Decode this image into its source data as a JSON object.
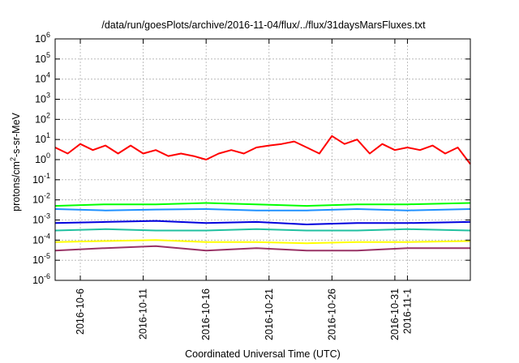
{
  "chart_data": {
    "type": "line",
    "title": "/data/run/goesPlots/archive/2016-11-04/flux/../flux/31daysMarsFluxes.txt",
    "xlabel": "Coordinated Universal Time (UTC)",
    "ylabel_main": "protons/cm",
    "ylabel_sup": "2",
    "ylabel_rest": "-s-sr-MeV",
    "log_y": true,
    "grid": true,
    "xlim": [
      "2016-10-04",
      "2016-11-06"
    ],
    "ylim": [
      1e-06,
      1000000.0
    ],
    "y_ticks": [
      {
        "base": "10",
        "exp": "-6",
        "value": 1e-06
      },
      {
        "base": "10",
        "exp": "-5",
        "value": 1e-05
      },
      {
        "base": "10",
        "exp": "-4",
        "value": 0.0001
      },
      {
        "base": "10",
        "exp": "-3",
        "value": 0.001
      },
      {
        "base": "10",
        "exp": "-2",
        "value": 0.01
      },
      {
        "base": "10",
        "exp": "-1",
        "value": 0.1
      },
      {
        "base": "10",
        "exp": "0",
        "value": 1
      },
      {
        "base": "10",
        "exp": "1",
        "value": 10
      },
      {
        "base": "10",
        "exp": "2",
        "value": 100
      },
      {
        "base": "10",
        "exp": "3",
        "value": 1000
      },
      {
        "base": "10",
        "exp": "4",
        "value": 10000
      },
      {
        "base": "10",
        "exp": "5",
        "value": 100000
      },
      {
        "base": "10",
        "exp": "6",
        "value": 1000000
      }
    ],
    "x_ticks": [
      {
        "label": "2016-10-6",
        "date": "2016-10-06"
      },
      {
        "label": "2016-10-11",
        "date": "2016-10-11"
      },
      {
        "label": "2016-10-16",
        "date": "2016-10-16"
      },
      {
        "label": "2016-10-21",
        "date": "2016-10-21"
      },
      {
        "label": "2016-10-26",
        "date": "2016-10-26"
      },
      {
        "label": "2016-10-31",
        "date": "2016-10-31"
      },
      {
        "label": "2016-11-1",
        "date": "2016-11-01"
      }
    ],
    "series": [
      {
        "color": "#ff0000",
        "x": [
          "2016-10-04",
          "2016-10-05",
          "2016-10-06",
          "2016-10-07",
          "2016-10-08",
          "2016-10-09",
          "2016-10-10",
          "2016-10-11",
          "2016-10-12",
          "2016-10-13",
          "2016-10-14",
          "2016-10-15",
          "2016-10-16",
          "2016-10-17",
          "2016-10-18",
          "2016-10-19",
          "2016-10-20",
          "2016-10-21",
          "2016-10-22",
          "2016-10-23",
          "2016-10-24",
          "2016-10-25",
          "2016-10-26",
          "2016-10-27",
          "2016-10-28",
          "2016-10-29",
          "2016-10-30",
          "2016-10-31",
          "2016-11-01",
          "2016-11-02",
          "2016-11-03",
          "2016-11-04",
          "2016-11-05",
          "2016-11-06"
        ],
        "y": [
          4,
          2,
          6,
          3,
          5,
          2,
          5,
          2,
          3,
          1.5,
          2,
          1.5,
          1,
          2,
          3,
          2,
          4,
          5,
          6,
          8,
          4,
          2,
          15,
          6,
          10,
          2,
          6,
          3,
          4,
          3,
          5,
          2,
          4,
          0.6
        ]
      },
      {
        "color": "#00ff00",
        "x": [
          "2016-10-04",
          "2016-10-08",
          "2016-10-12",
          "2016-10-16",
          "2016-10-20",
          "2016-10-24",
          "2016-10-28",
          "2016-11-01",
          "2016-11-06"
        ],
        "y": [
          0.005,
          0.006,
          0.006,
          0.007,
          0.006,
          0.005,
          0.006,
          0.006,
          0.007
        ]
      },
      {
        "color": "#1e90ff",
        "x": [
          "2016-10-04",
          "2016-10-08",
          "2016-10-12",
          "2016-10-16",
          "2016-10-20",
          "2016-10-24",
          "2016-10-28",
          "2016-11-01",
          "2016-11-06"
        ],
        "y": [
          0.0035,
          0.003,
          0.0033,
          0.0035,
          0.003,
          0.003,
          0.0035,
          0.003,
          0.0035
        ]
      },
      {
        "color": "#0000dd",
        "x": [
          "2016-10-04",
          "2016-10-08",
          "2016-10-12",
          "2016-10-16",
          "2016-10-20",
          "2016-10-24",
          "2016-10-28",
          "2016-11-01",
          "2016-11-06"
        ],
        "y": [
          0.0007,
          0.0008,
          0.0009,
          0.0007,
          0.0008,
          0.0006,
          0.0007,
          0.0007,
          0.0008
        ]
      },
      {
        "color": "#20c0a0",
        "x": [
          "2016-10-04",
          "2016-10-08",
          "2016-10-12",
          "2016-10-16",
          "2016-10-20",
          "2016-10-24",
          "2016-10-28",
          "2016-11-01",
          "2016-11-06"
        ],
        "y": [
          0.0003,
          0.00035,
          0.0003,
          0.0003,
          0.00035,
          0.0003,
          0.0003,
          0.00035,
          0.0003
        ]
      },
      {
        "color": "#ffff00",
        "x": [
          "2016-10-04",
          "2016-10-08",
          "2016-10-12",
          "2016-10-16",
          "2016-10-20",
          "2016-10-24",
          "2016-10-28",
          "2016-11-01",
          "2016-11-06"
        ],
        "y": [
          8e-05,
          9e-05,
          0.0001,
          8e-05,
          8e-05,
          7e-05,
          8e-05,
          8e-05,
          9e-05
        ]
      },
      {
        "color": "#993366",
        "x": [
          "2016-10-04",
          "2016-10-08",
          "2016-10-12",
          "2016-10-16",
          "2016-10-20",
          "2016-10-24",
          "2016-10-28",
          "2016-11-01",
          "2016-11-06"
        ],
        "y": [
          3e-05,
          4e-05,
          5e-05,
          3e-05,
          4e-05,
          3e-05,
          3e-05,
          4e-05,
          4e-05
        ]
      }
    ]
  }
}
